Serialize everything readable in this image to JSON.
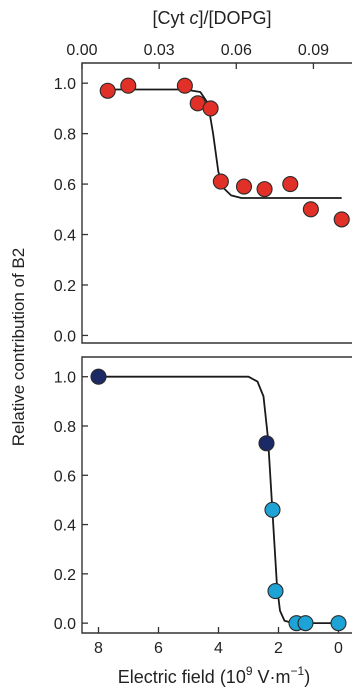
{
  "chart_data": [
    {
      "type": "scatter",
      "panel": "top",
      "xlabel_top_parts": [
        "[Cyt ",
        "c",
        "]/[DOPG]"
      ],
      "xlim": [
        0.0,
        0.105
      ],
      "xticks": [
        "0.00",
        "0.03",
        "0.06",
        "0.09"
      ],
      "xtick_values": [
        0.0,
        0.03,
        0.06,
        0.09
      ],
      "ylim": [
        -0.03,
        1.08
      ],
      "yticks": [
        "0.0",
        "0.2",
        "0.4",
        "0.6",
        "0.8",
        "1.0"
      ],
      "ytick_values": [
        0.0,
        0.2,
        0.4,
        0.6,
        0.8,
        1.0
      ],
      "series": [
        {
          "color": "#e03027",
          "x": [
            0.01,
            0.018,
            0.04,
            0.045,
            0.05,
            0.054,
            0.063,
            0.071,
            0.081,
            0.089,
            0.101
          ],
          "y": [
            0.97,
            0.99,
            0.99,
            0.92,
            0.9,
            0.61,
            0.59,
            0.58,
            0.6,
            0.5,
            0.46
          ]
        }
      ],
      "fit": {
        "color": "#1a1a1a",
        "x": [
          0.01,
          0.04,
          0.046,
          0.049,
          0.051,
          0.053,
          0.055,
          0.058,
          0.062,
          0.07,
          0.101
        ],
        "y": [
          0.975,
          0.975,
          0.965,
          0.92,
          0.8,
          0.65,
          0.585,
          0.555,
          0.545,
          0.545,
          0.545
        ]
      }
    },
    {
      "type": "scatter",
      "panel": "bottom",
      "xlabel_parts": [
        "Electric field  (10",
        "9",
        " V·m",
        "−1",
        ")"
      ],
      "xlim": [
        8.55,
        -0.45
      ],
      "xticks": [
        "8",
        "6",
        "4",
        "2",
        "0"
      ],
      "xtick_values": [
        8,
        6,
        4,
        2,
        0
      ],
      "ylim": [
        -0.04,
        1.08
      ],
      "yticks": [
        "0.0",
        "0.2",
        "0.4",
        "0.6",
        "0.8",
        "1.0"
      ],
      "ytick_values": [
        0.0,
        0.2,
        0.4,
        0.6,
        0.8,
        1.0
      ],
      "series": [
        {
          "color": "#1b2a66",
          "x": [
            8.0,
            2.4
          ],
          "y": [
            1.0,
            0.73
          ]
        },
        {
          "color": "#1da3d6",
          "x": [
            2.2,
            2.1,
            1.4,
            1.1,
            0.0
          ],
          "y": [
            0.46,
            0.13,
            0.0,
            0.0,
            0.0
          ]
        }
      ],
      "fit": {
        "color": "#1a1a1a",
        "x": [
          8.0,
          3.0,
          2.7,
          2.5,
          2.35,
          2.25,
          2.15,
          2.05,
          1.95,
          1.8,
          1.5,
          0.0
        ],
        "y": [
          1.0,
          1.0,
          0.98,
          0.92,
          0.75,
          0.55,
          0.35,
          0.15,
          0.05,
          0.01,
          0.0,
          0.0
        ]
      }
    }
  ],
  "shared_ylabel": "Relative contribution of B2"
}
